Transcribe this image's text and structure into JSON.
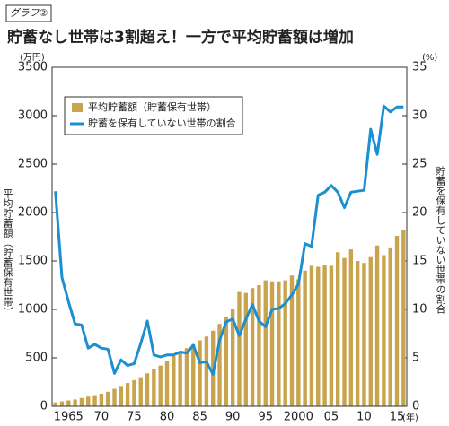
{
  "chart_data": {
    "type": "bar_line",
    "label": "グラフ②",
    "title": "貯蓄なし世帯は3割超え！一方で平均貯蓄額は増加",
    "ylabel_unit": "(万円)",
    "y2label_unit": "(%)",
    "xlabel": "(年)",
    "ylabel": "平均貯蓄額（貯蓄保有世帯）",
    "y2label": "貯蓄を保有していない世帯の割合",
    "categories": [
      null,
      null,
      "1965",
      null,
      null,
      null,
      null,
      "70",
      null,
      null,
      null,
      null,
      "75",
      null,
      null,
      null,
      null,
      "80",
      null,
      null,
      null,
      null,
      "85",
      null,
      null,
      null,
      null,
      "90",
      null,
      null,
      null,
      null,
      "95",
      null,
      null,
      null,
      null,
      "2000",
      null,
      null,
      null,
      null,
      "05",
      null,
      null,
      null,
      null,
      "10",
      null,
      null,
      null,
      null,
      "15",
      null
    ],
    "series": [
      {
        "name": "平均貯蓄額（貯蓄保有世帯）",
        "color": "#c9a44e",
        "kind": "bar",
        "values": [
          40,
          50,
          60,
          70,
          85,
          100,
          115,
          130,
          150,
          180,
          210,
          240,
          270,
          300,
          340,
          380,
          420,
          470,
          520,
          560,
          600,
          640,
          680,
          720,
          780,
          850,
          920,
          1000,
          1180,
          1170,
          1220,
          1250,
          1300,
          1290,
          1290,
          1300,
          1350,
          1310,
          1400,
          1450,
          1440,
          1460,
          1450,
          1590,
          1530,
          1620,
          1500,
          1480,
          1540,
          1660,
          1560,
          1640,
          1760,
          1820
        ]
      },
      {
        "name": "貯蓄を保有していない世帯の割合",
        "color": "#1b8fd1",
        "kind": "line",
        "axis": "y2",
        "values": [
          22.2,
          13.3,
          10.8,
          8.5,
          8.4,
          6.0,
          6.4,
          6.0,
          5.9,
          3.4,
          4.8,
          4.2,
          4.4,
          6.5,
          8.8,
          5.3,
          5.1,
          5.3,
          5.3,
          5.6,
          5.5,
          6.3,
          4.5,
          4.6,
          3.3,
          6.8,
          8.7,
          9.0,
          7.3,
          9.0,
          10.5,
          8.8,
          8.2,
          10.0,
          10.1,
          10.6,
          11.5,
          12.6,
          16.8,
          16.5,
          21.8,
          22.1,
          22.8,
          22.1,
          20.5,
          22.1,
          22.2,
          22.3,
          28.6,
          26.0,
          31.0,
          30.4,
          30.9,
          30.9
        ]
      }
    ],
    "ylim": [
      0,
      3500
    ],
    "yticks": [
      0,
      500,
      1000,
      1500,
      2000,
      2500,
      3000,
      3500
    ],
    "y2lim": [
      0,
      35
    ],
    "y2ticks": [
      0,
      5,
      10,
      15,
      20,
      25,
      30,
      35
    ],
    "legend": "upper left"
  }
}
